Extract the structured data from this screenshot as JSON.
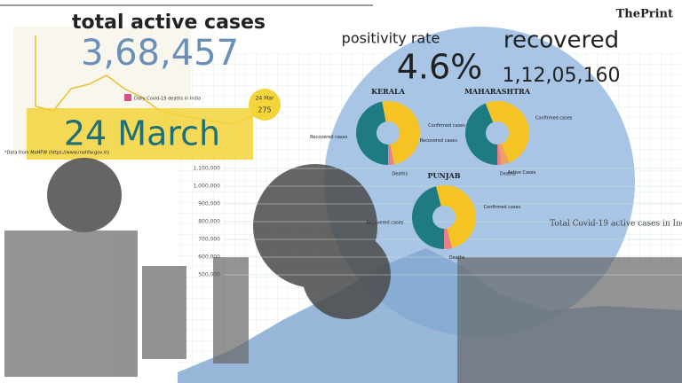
{
  "brand": "ThePrint",
  "headline": {
    "title": "total active cases",
    "value": "3,68,457"
  },
  "positivity": {
    "label": "positivity rate",
    "value": "4.6%"
  },
  "recovered": {
    "label": "recovered",
    "value": "1,12,05,160"
  },
  "date_banner": "24 March",
  "small_chart": {
    "legend": "Daily Covid-19 deaths in India",
    "callout_date": "24 Mar",
    "callout_value": "275",
    "source": "*Data from MoHFW (https://www.mohfw.gov.in)"
  },
  "donuts": [
    {
      "state": "KERALA",
      "segments": [
        {
          "name": "Recovered cases",
          "value": 47,
          "color": "#1e7b82"
        },
        {
          "name": "Confirmed cases",
          "value": 50,
          "color": "#f6c324"
        },
        {
          "name": "Deaths",
          "value": 3,
          "color": "#e8808c"
        }
      ]
    },
    {
      "state": "MAHARASHTRA",
      "segments": [
        {
          "name": "Recovered cases",
          "value": 44,
          "color": "#1e7b82"
        },
        {
          "name": "Confirmed cases",
          "value": 50,
          "color": "#f6c324"
        },
        {
          "name": "Active Cases",
          "value": 4,
          "color": "#f0a060"
        },
        {
          "name": "Deaths",
          "value": 2,
          "color": "#e8808c"
        }
      ]
    },
    {
      "state": "PUNJAB",
      "segments": [
        {
          "name": "Recovered cases",
          "value": 46,
          "color": "#1e7b82"
        },
        {
          "name": "Confirmed cases",
          "value": 50,
          "color": "#f6c324"
        },
        {
          "name": "Deaths",
          "value": 4,
          "color": "#e8808c"
        }
      ]
    }
  ],
  "background_chart": {
    "title": "Total Covid-19 active cases in India",
    "yticks": [
      "1,100,000",
      "1,000,000",
      "900,000",
      "800,000",
      "700,000",
      "600,000",
      "500,000"
    ]
  }
}
